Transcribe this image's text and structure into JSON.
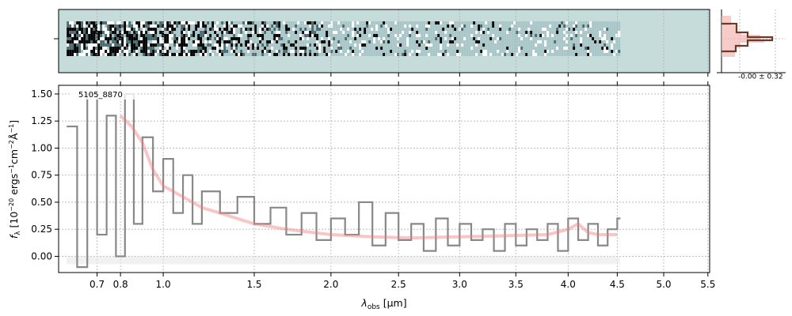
{
  "chart_data": [
    {
      "type": "line",
      "panel": "spectrum",
      "annotation": "5105_8870",
      "xlabel_main": "λ",
      "xlabel_sub": "obs",
      "xlabel_unit": " [μm]",
      "ylabel": "f_λ [10^-20 ergs^-1cm^-2Å^-1]",
      "ylabel_parts": {
        "f": "f",
        "lambda_sub": "λ",
        "bracket_open": " [10",
        "exp1": "−20",
        "ergs": " ergs",
        "exp2": "−1",
        "cm": "cm",
        "exp3": "−2",
        "ang": "Å",
        "exp4": "−1",
        "bracket_close": "]"
      },
      "x_scale": "sqrt",
      "xlim": [
        0.55,
        5.52
      ],
      "ylim": [
        -0.15,
        1.58
      ],
      "x_ticks": [
        "0.7",
        "0.8",
        "1.0",
        "1.5",
        "2.0",
        "2.5",
        "3.0",
        "3.5",
        "4.0",
        "4.5",
        "5.0",
        "5.5"
      ],
      "x_tick_values": [
        0.7,
        0.8,
        1.0,
        1.5,
        2.0,
        2.5,
        3.0,
        3.5,
        4.0,
        4.5,
        5.0,
        5.5
      ],
      "y_ticks": [
        "0.00",
        "0.25",
        "0.50",
        "0.75",
        "1.00",
        "1.25",
        "1.50"
      ],
      "y_tick_values": [
        0.0,
        0.25,
        0.5,
        0.75,
        1.0,
        1.25,
        1.5
      ],
      "grid": true,
      "series": [
        {
          "role": "observed-flux",
          "color": "#888888",
          "style": "steps",
          "x": [
            0.58,
            0.62,
            0.66,
            0.7,
            0.74,
            0.78,
            0.82,
            0.86,
            0.9,
            0.95,
            1.0,
            1.05,
            1.1,
            1.15,
            1.2,
            1.3,
            1.4,
            1.5,
            1.6,
            1.7,
            1.8,
            1.9,
            2.0,
            2.1,
            2.2,
            2.3,
            2.4,
            2.5,
            2.6,
            2.7,
            2.8,
            2.9,
            3.0,
            3.1,
            3.2,
            3.3,
            3.4,
            3.5,
            3.6,
            3.7,
            3.8,
            3.9,
            4.0,
            4.1,
            4.2,
            4.3,
            4.4,
            4.5
          ],
          "y": [
            1.2,
            -0.1,
            1.5,
            0.2,
            1.3,
            0.0,
            1.5,
            0.3,
            1.1,
            0.6,
            0.9,
            0.4,
            0.75,
            0.3,
            0.6,
            0.4,
            0.55,
            0.3,
            0.45,
            0.2,
            0.4,
            0.15,
            0.35,
            0.2,
            0.5,
            0.1,
            0.4,
            0.15,
            0.3,
            0.05,
            0.35,
            0.1,
            0.3,
            0.15,
            0.25,
            0.05,
            0.3,
            0.1,
            0.25,
            0.15,
            0.3,
            0.05,
            0.35,
            0.15,
            0.3,
            0.1,
            0.25,
            0.35
          ]
        },
        {
          "role": "model",
          "color": "#f08080",
          "style": "smooth",
          "x": [
            0.8,
            0.85,
            0.9,
            0.95,
            1.0,
            1.1,
            1.2,
            1.3,
            1.5,
            1.7,
            2.0,
            2.3,
            2.6,
            3.0,
            3.4,
            3.8,
            4.0,
            4.1,
            4.2,
            4.3,
            4.5
          ],
          "y": [
            1.3,
            1.2,
            1.05,
            0.8,
            0.65,
            0.55,
            0.45,
            0.4,
            0.3,
            0.25,
            0.2,
            0.18,
            0.17,
            0.18,
            0.19,
            0.2,
            0.25,
            0.3,
            0.22,
            0.2,
            0.2
          ]
        }
      ]
    },
    {
      "type": "heatmap",
      "panel": "2d-spectrum",
      "colormap_background": "#c5dcdb",
      "x_range": [
        0.58,
        4.53
      ]
    },
    {
      "type": "histogram",
      "panel": "residual-histogram",
      "annotation": "-0.00 ± 0.32",
      "color": "#6b3a2a",
      "fill_color": "#f4b6b0"
    }
  ]
}
